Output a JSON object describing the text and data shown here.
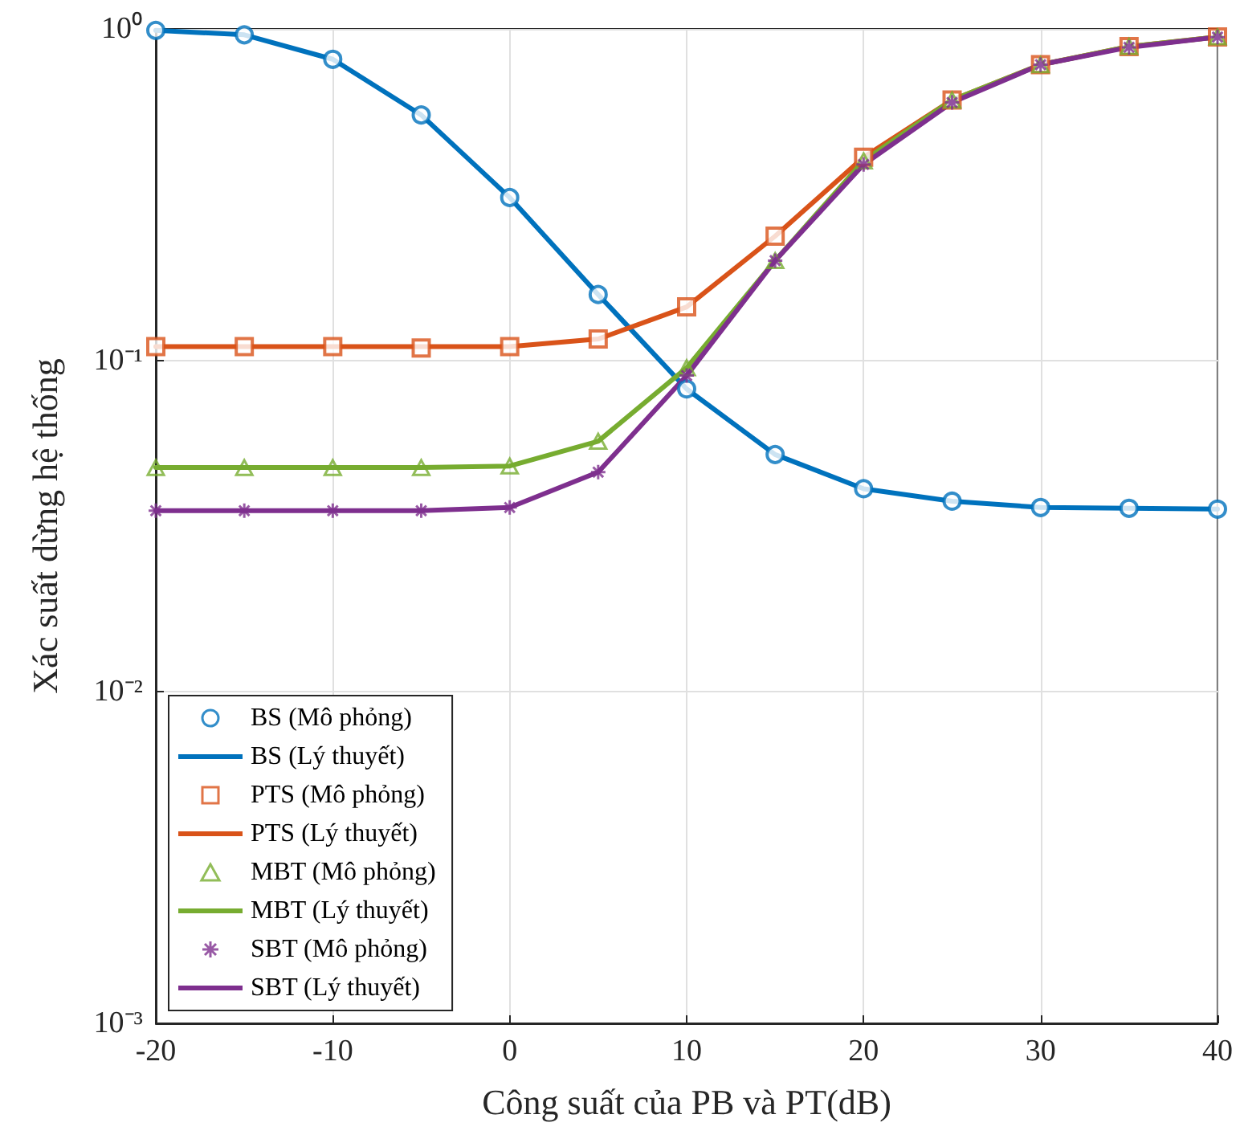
{
  "chart_data": {
    "type": "line",
    "xlabel": "Công suất của PB và PT(dB)",
    "ylabel": "Xác suất dừng hệ thống",
    "x": [
      -20,
      -15,
      -10,
      -5,
      0,
      5,
      10,
      15,
      20,
      25,
      30,
      35,
      40
    ],
    "xlim": [
      -20,
      40
    ],
    "xticks": [
      -20,
      -10,
      0,
      10,
      20,
      30,
      40
    ],
    "log": "y",
    "ylim": [
      0.001,
      1
    ],
    "yticks": [
      {
        "value": 0.001,
        "label": "10⁻³"
      },
      {
        "value": 0.01,
        "label": "10⁻²"
      },
      {
        "value": 0.1,
        "label": "10⁻¹"
      },
      {
        "value": 1,
        "label": "10⁰"
      }
    ],
    "grid": true,
    "legend": "bottom left",
    "series": [
      {
        "name": "BS (Mô phỏng)",
        "type": "scatter",
        "marker": "circle",
        "color": "#0072bd",
        "values": [
          0.99,
          0.96,
          0.81,
          0.55,
          0.31,
          0.158,
          0.082,
          0.052,
          0.041,
          0.0376,
          0.036,
          0.0358,
          0.0356
        ]
      },
      {
        "name": "BS (Lý thuyết)",
        "type": "line",
        "line_style": "solid",
        "color": "#0072bd",
        "values": [
          0.99,
          0.96,
          0.81,
          0.55,
          0.31,
          0.158,
          0.082,
          0.052,
          0.041,
          0.0376,
          0.036,
          0.0358,
          0.0356
        ]
      },
      {
        "name": "PTS (Mô phỏng)",
        "type": "scatter",
        "marker": "square",
        "color": "#d95319",
        "values": [
          0.11,
          0.11,
          0.11,
          0.109,
          0.11,
          0.116,
          0.145,
          0.237,
          0.41,
          0.61,
          0.78,
          0.885,
          0.946
        ]
      },
      {
        "name": "PTS (Lý thuyết)",
        "type": "line",
        "line_style": "solid",
        "color": "#d95319",
        "values": [
          0.11,
          0.11,
          0.11,
          0.11,
          0.11,
          0.116,
          0.145,
          0.237,
          0.41,
          0.61,
          0.78,
          0.885,
          0.946
        ]
      },
      {
        "name": "MBT (Mô phỏng)",
        "type": "scatter",
        "marker": "triangle",
        "color": "#77ac30",
        "values": [
          0.0475,
          0.0475,
          0.0475,
          0.0475,
          0.048,
          0.057,
          0.095,
          0.2,
          0.4,
          0.61,
          0.78,
          0.885,
          0.946
        ]
      },
      {
        "name": "MBT (Lý thuyết)",
        "type": "line",
        "line_style": "solid",
        "color": "#77ac30",
        "values": [
          0.0475,
          0.0475,
          0.0475,
          0.0475,
          0.048,
          0.057,
          0.095,
          0.2,
          0.4,
          0.61,
          0.78,
          0.885,
          0.946
        ]
      },
      {
        "name": "SBT (Mô phỏng)",
        "type": "scatter",
        "marker": "cross",
        "color": "#7e2f8e",
        "values": [
          0.0352,
          0.0352,
          0.0352,
          0.0352,
          0.036,
          0.046,
          0.09,
          0.2,
          0.39,
          0.6,
          0.78,
          0.88,
          0.945
        ]
      },
      {
        "name": "SBT (Lý thuyết)",
        "type": "line",
        "line_style": "solid",
        "color": "#7e2f8e",
        "values": [
          0.0352,
          0.0352,
          0.0352,
          0.0352,
          0.036,
          0.046,
          0.09,
          0.2,
          0.39,
          0.6,
          0.78,
          0.88,
          0.945
        ]
      }
    ]
  }
}
